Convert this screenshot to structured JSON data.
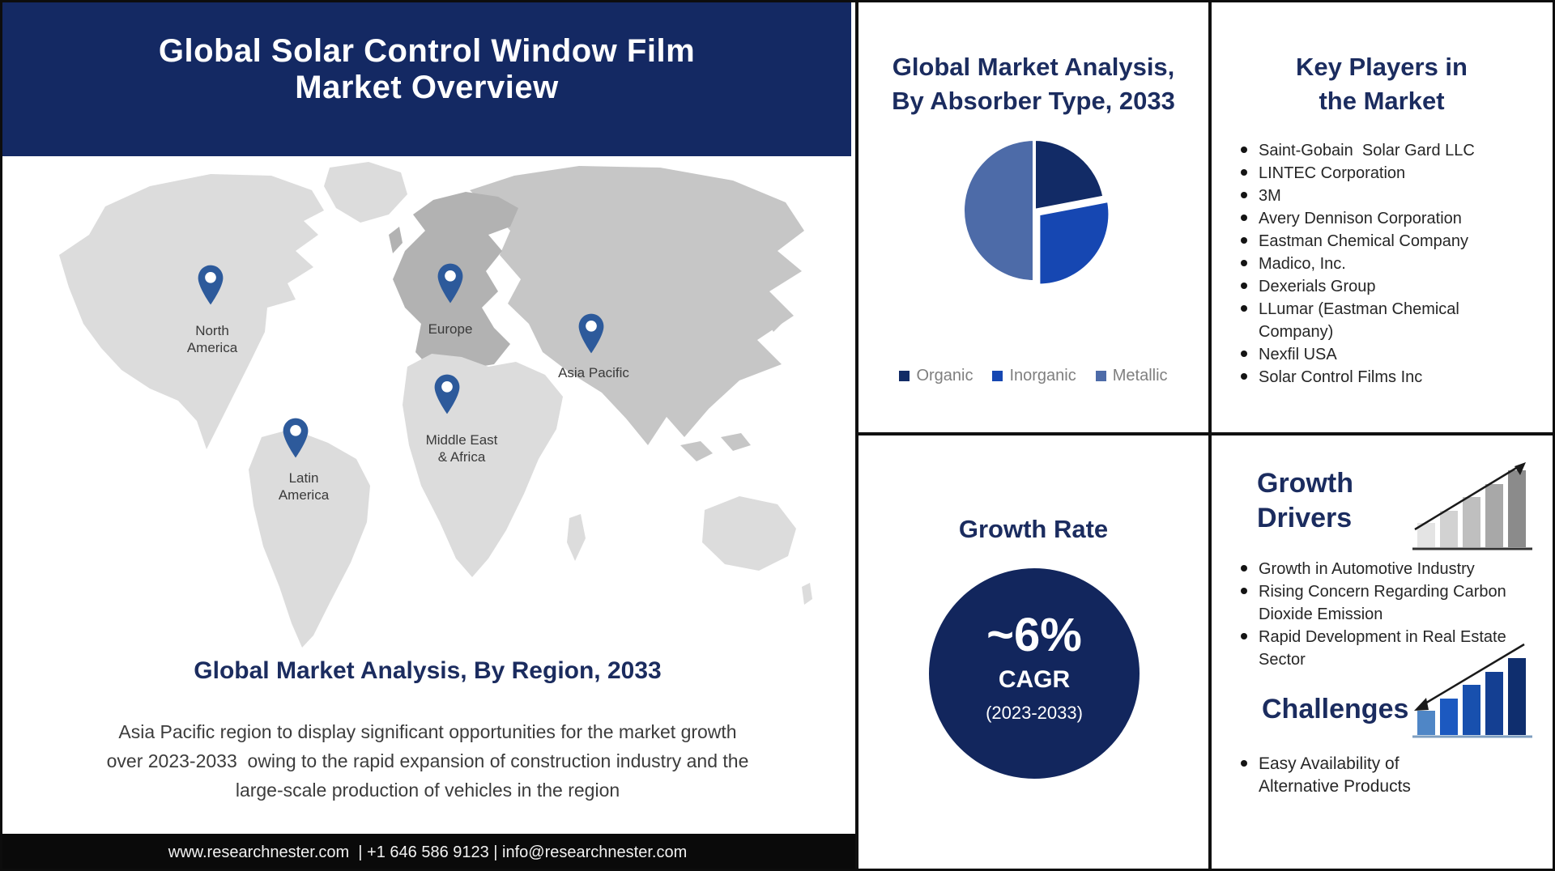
{
  "header": {
    "title": "Global Solar Control Window Film\nMarket Overview"
  },
  "map_section": {
    "regions": [
      {
        "label": "North\nAmerica"
      },
      {
        "label": "Europe"
      },
      {
        "label": "Asia Pacific"
      },
      {
        "label": "Middle East\n& Africa"
      },
      {
        "label": "Latin\nAmerica"
      }
    ],
    "title": "Global Market Analysis, By Region, 2033",
    "description": "Asia Pacific region to display significant opportunities for the market growth\nover 2023-2033  owing to the rapid expansion of construction industry and the\nlarge-scale production of vehicles in the region"
  },
  "absorber_panel": {
    "title": "Global Market Analysis,\nBy Absorber Type, 2033"
  },
  "chart_data": {
    "type": "pie",
    "title": "Global Market Analysis, By Absorber Type, 2033",
    "slices": [
      {
        "label": "Organic",
        "value": 22,
        "color": "#122b66",
        "exploded": false
      },
      {
        "label": "Inorganic",
        "value": 28,
        "color": "#1647b2",
        "exploded": true
      },
      {
        "label": "Metallic",
        "value": 50,
        "color": "#4d6ba8",
        "exploded": false
      }
    ],
    "legend_position": "bottom",
    "start_angle_deg": 0,
    "direction": "clockwise"
  },
  "growth_rate": {
    "title": "Growth Rate",
    "value": "~6%",
    "label": "CAGR",
    "period": "(2023-2033)"
  },
  "key_players": {
    "title": "Key Players in\nthe Market",
    "items": [
      "Saint-Gobain  Solar Gard LLC",
      "LINTEC Corporation",
      "3M",
      "Avery Dennison Corporation",
      "Eastman Chemical Company",
      "Madico, Inc.",
      "Dexerials Group",
      "LLumar (Eastman Chemical\nCompany)",
      "Nexfil USA",
      "Solar Control Films Inc"
    ]
  },
  "growth_drivers": {
    "title": "Growth\nDrivers",
    "items": [
      "Growth in Automotive Industry",
      "Rising Concern Regarding Carbon\nDioxide Emission",
      "Rapid Development in Real Estate\nSector"
    ]
  },
  "challenges": {
    "title": "Challenges",
    "items": [
      "Easy Availability of\nAlternative Products"
    ]
  },
  "footer": {
    "text": "www.researchnester.com  | +1 646 586 9123 | info@researchnester.com"
  },
  "colors": {
    "band_navy": "#142963",
    "heading_navy": "#1b2c5f",
    "circle_navy": "#12265d",
    "pin_blue": "#2d5a9b",
    "legend_text": "#7f7f7f",
    "body_text": "#3c3c3c",
    "footer_bg": "#0a0a0a",
    "footer_text": "#f2f2f2",
    "map_light": "#dcdcdc",
    "map_mid": "#c6c6c6",
    "map_dark": "#b2b2b2"
  }
}
